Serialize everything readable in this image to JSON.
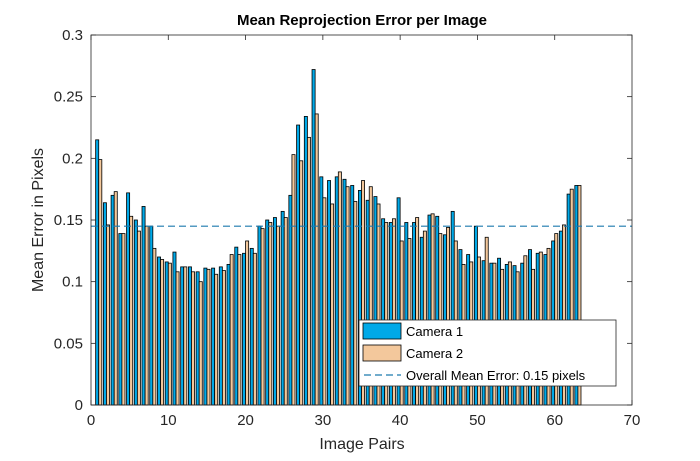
{
  "chart_data": {
    "type": "bar",
    "title": "Mean Reprojection Error per Image",
    "xlabel": "Image Pairs",
    "ylabel": "Mean Error in Pixels",
    "xlim": [
      0,
      70
    ],
    "ylim": [
      0,
      0.3
    ],
    "x_ticks": [
      "0",
      "10",
      "20",
      "30",
      "40",
      "50",
      "60",
      "70"
    ],
    "y_ticks": [
      "0",
      "0.05",
      "0.1",
      "0.15",
      "0.2",
      "0.25",
      "0.3"
    ],
    "grid": false,
    "legend_position": "bottom-right",
    "x": [
      1,
      2,
      3,
      4,
      5,
      6,
      7,
      8,
      9,
      10,
      11,
      12,
      13,
      14,
      15,
      16,
      17,
      18,
      19,
      20,
      21,
      22,
      23,
      24,
      25,
      26,
      27,
      28,
      29,
      30,
      31,
      32,
      33,
      34,
      35,
      36,
      37,
      38,
      39,
      40,
      41,
      42,
      43,
      44,
      45,
      46,
      47,
      48,
      49,
      50,
      51,
      52,
      53,
      54,
      55,
      56,
      57,
      58,
      59,
      60,
      61,
      62,
      63
    ],
    "series": [
      {
        "name": "Camera 1",
        "color": "#00A9E8",
        "values": [
          0.215,
          0.164,
          0.17,
          0.139,
          0.172,
          0.15,
          0.161,
          0.145,
          0.12,
          0.116,
          0.124,
          0.112,
          0.112,
          0.108,
          0.111,
          0.111,
          0.112,
          0.114,
          0.128,
          0.123,
          0.127,
          0.145,
          0.15,
          0.152,
          0.157,
          0.17,
          0.227,
          0.234,
          0.272,
          0.185,
          0.182,
          0.185,
          0.183,
          0.178,
          0.174,
          0.166,
          0.169,
          0.151,
          0.148,
          0.168,
          0.148,
          0.148,
          0.136,
          0.154,
          0.153,
          0.138,
          0.157,
          0.126,
          0.122,
          0.145,
          0.117,
          0.115,
          0.119,
          0.114,
          0.113,
          0.115,
          0.126,
          0.123,
          0.122,
          0.133,
          0.141,
          0.171,
          0.178
        ]
      },
      {
        "name": "Camera 2",
        "color": "#F3C89C",
        "values": [
          0.199,
          0.146,
          0.173,
          0.139,
          0.153,
          0.141,
          0.145,
          0.127,
          0.118,
          0.115,
          0.108,
          0.112,
          0.108,
          0.1,
          0.11,
          0.106,
          0.109,
          0.122,
          0.122,
          0.133,
          0.123,
          0.143,
          0.148,
          0.145,
          0.152,
          0.203,
          0.198,
          0.217,
          0.236,
          0.168,
          0.163,
          0.189,
          0.177,
          0.165,
          0.182,
          0.177,
          0.163,
          0.148,
          0.151,
          0.133,
          0.135,
          0.152,
          0.141,
          0.155,
          0.139,
          0.144,
          0.133,
          0.114,
          0.116,
          0.12,
          0.136,
          0.115,
          0.11,
          0.116,
          0.108,
          0.121,
          0.11,
          0.124,
          0.127,
          0.139,
          0.146,
          0.175,
          0.178
        ]
      }
    ],
    "reference_line": {
      "value": 0.145,
      "label": "Overall Mean Error: 0.15 pixels",
      "color": "#1C7AAE"
    }
  }
}
